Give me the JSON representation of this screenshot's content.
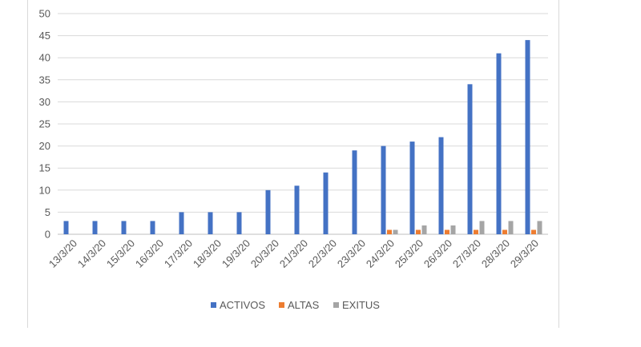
{
  "chart_data": {
    "type": "bar",
    "title": "",
    "xlabel": "",
    "ylabel": "",
    "categories": [
      "13/3/20",
      "14/3/20",
      "15/3/20",
      "16/3/20",
      "17/3/20",
      "18/3/20",
      "19/3/20",
      "20/3/20",
      "21/3/20",
      "22/3/20",
      "23/3/20",
      "24/3/20",
      "25/3/20",
      "26/3/20",
      "27/3/20",
      "28/3/20",
      "29/3/20"
    ],
    "series": [
      {
        "name": "ACTIVOS",
        "color": "#4472c4",
        "values": [
          3,
          3,
          3,
          3,
          5,
          5,
          5,
          10,
          11,
          14,
          19,
          20,
          21,
          22,
          34,
          41,
          44
        ]
      },
      {
        "name": "ALTAS",
        "color": "#ed7d31",
        "values": [
          0,
          0,
          0,
          0,
          0,
          0,
          0,
          0,
          0,
          0,
          0,
          1,
          1,
          1,
          1,
          1,
          1
        ]
      },
      {
        "name": "EXITUS",
        "color": "#a5a5a5",
        "values": [
          0,
          0,
          0,
          0,
          0,
          0,
          0,
          0,
          0,
          0,
          0,
          1,
          2,
          2,
          3,
          3,
          3
        ]
      }
    ],
    "ylim": [
      0,
      50
    ],
    "yticks": [
      0,
      5,
      10,
      15,
      20,
      25,
      30,
      35,
      40,
      45,
      50
    ],
    "grid": true,
    "legend": "bottom"
  }
}
